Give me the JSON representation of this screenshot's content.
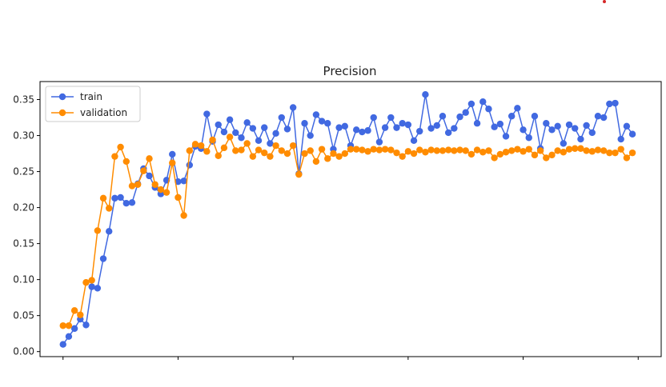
{
  "chart_data": {
    "type": "line",
    "title": "Precision",
    "xlabel": "",
    "ylabel": "",
    "x_start": 0,
    "xlim": [
      -4,
      104
    ],
    "x_ticks": [
      0,
      20,
      40,
      60,
      80,
      100
    ],
    "x_tick_labels_visible": false,
    "ylim": [
      -0.007,
      0.375
    ],
    "y_ticks": [
      0.0,
      0.05,
      0.1,
      0.15,
      0.2,
      0.25,
      0.3,
      0.35
    ],
    "y_tick_labels": [
      "0.00",
      "0.05",
      "0.10",
      "0.15",
      "0.20",
      "0.25",
      "0.30",
      "0.35"
    ],
    "grid": false,
    "legend": "top-left",
    "marker": "circle",
    "series": [
      {
        "name": "train",
        "color": "#4169e1",
        "values": [
          0.01,
          0.021,
          0.032,
          0.045,
          0.037,
          0.09,
          0.088,
          0.129,
          0.167,
          0.213,
          0.214,
          0.206,
          0.207,
          0.233,
          0.254,
          0.244,
          0.228,
          0.219,
          0.238,
          0.274,
          0.236,
          0.237,
          0.259,
          0.285,
          0.282,
          0.33,
          0.292,
          0.315,
          0.305,
          0.322,
          0.304,
          0.297,
          0.318,
          0.31,
          0.293,
          0.311,
          0.289,
          0.303,
          0.325,
          0.309,
          0.339,
          0.247,
          0.317,
          0.3,
          0.329,
          0.32,
          0.317,
          0.281,
          0.311,
          0.313,
          0.286,
          0.308,
          0.305,
          0.307,
          0.325,
          0.291,
          0.311,
          0.325,
          0.311,
          0.317,
          0.315,
          0.293,
          0.306,
          0.357,
          0.31,
          0.314,
          0.327,
          0.304,
          0.31,
          0.326,
          0.332,
          0.344,
          0.317,
          0.347,
          0.337,
          0.312,
          0.316,
          0.299,
          0.327,
          0.338,
          0.308,
          0.297,
          0.327,
          0.282,
          0.317,
          0.308,
          0.313,
          0.289,
          0.315,
          0.31,
          0.295,
          0.314,
          0.304,
          0.327,
          0.325,
          0.344,
          0.345,
          0.295,
          0.313,
          0.302
        ]
      },
      {
        "name": "validation",
        "color": "#ff8c00",
        "values": [
          0.036,
          0.036,
          0.057,
          0.051,
          0.096,
          0.099,
          0.168,
          0.213,
          0.199,
          0.271,
          0.284,
          0.264,
          0.23,
          0.232,
          0.251,
          0.268,
          0.232,
          0.225,
          0.221,
          0.262,
          0.214,
          0.189,
          0.279,
          0.288,
          0.286,
          0.278,
          0.294,
          0.272,
          0.283,
          0.298,
          0.279,
          0.28,
          0.289,
          0.271,
          0.28,
          0.276,
          0.271,
          0.286,
          0.279,
          0.275,
          0.286,
          0.246,
          0.275,
          0.279,
          0.264,
          0.281,
          0.268,
          0.275,
          0.271,
          0.275,
          0.281,
          0.281,
          0.28,
          0.278,
          0.281,
          0.28,
          0.281,
          0.28,
          0.276,
          0.271,
          0.278,
          0.275,
          0.28,
          0.277,
          0.28,
          0.279,
          0.279,
          0.28,
          0.279,
          0.28,
          0.279,
          0.274,
          0.28,
          0.277,
          0.279,
          0.269,
          0.274,
          0.277,
          0.279,
          0.281,
          0.278,
          0.281,
          0.273,
          0.279,
          0.269,
          0.273,
          0.279,
          0.277,
          0.281,
          0.282,
          0.282,
          0.279,
          0.278,
          0.28,
          0.279,
          0.276,
          0.276,
          0.281,
          0.269,
          0.276
        ]
      }
    ]
  },
  "decor": {
    "dot_color": "#d62728"
  }
}
